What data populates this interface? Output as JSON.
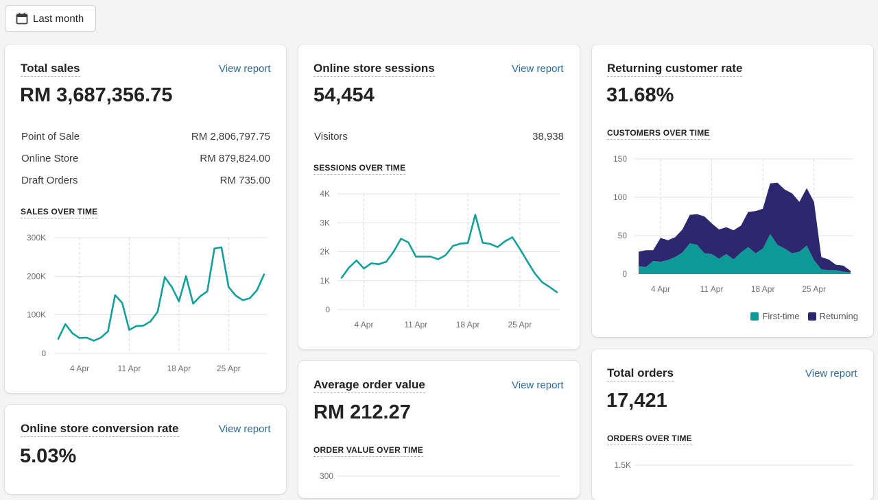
{
  "date_filter": {
    "label": "Last month"
  },
  "total_sales": {
    "title": "Total sales",
    "view_report": "View report",
    "value": "RM 3,687,356.75",
    "breakdown": [
      {
        "label": "Point of Sale",
        "value": "RM 2,806,797.75"
      },
      {
        "label": "Online Store",
        "value": "RM 879,824.00"
      },
      {
        "label": "Draft Orders",
        "value": "RM 735.00"
      }
    ],
    "chart_label": "SALES OVER TIME"
  },
  "online_store_sessions": {
    "title": "Online store sessions",
    "view_report": "View report",
    "value": "54,454",
    "breakdown": [
      {
        "label": "Visitors",
        "value": "38,938"
      }
    ],
    "chart_label": "SESSIONS OVER TIME"
  },
  "returning_customer_rate": {
    "title": "Returning customer rate",
    "value": "31.68%",
    "chart_label": "CUSTOMERS OVER TIME",
    "legend": [
      {
        "name": "First-time",
        "color": "#0d9a96"
      },
      {
        "name": "Returning",
        "color": "#2d2770"
      }
    ]
  },
  "online_store_conversion_rate": {
    "title": "Online store conversion rate",
    "view_report": "View report",
    "value": "5.03%"
  },
  "average_order_value": {
    "title": "Average order value",
    "view_report": "View report",
    "value": "RM 212.27",
    "chart_label": "ORDER VALUE OVER TIME"
  },
  "total_orders": {
    "title": "Total orders",
    "view_report": "View report",
    "value": "17,421",
    "chart_label": "ORDERS OVER TIME"
  },
  "chart_data": [
    {
      "id": "sales",
      "type": "line",
      "x": [
        "1 Apr",
        "2 Apr",
        "3 Apr",
        "4 Apr",
        "5 Apr",
        "6 Apr",
        "7 Apr",
        "8 Apr",
        "9 Apr",
        "10 Apr",
        "11 Apr",
        "12 Apr",
        "13 Apr",
        "14 Apr",
        "15 Apr",
        "16 Apr",
        "17 Apr",
        "18 Apr",
        "19 Apr",
        "20 Apr",
        "21 Apr",
        "22 Apr",
        "23 Apr",
        "24 Apr",
        "25 Apr",
        "26 Apr",
        "27 Apr",
        "28 Apr",
        "29 Apr",
        "30 Apr"
      ],
      "x_ticks": [
        "4 Apr",
        "11 Apr",
        "18 Apr",
        "25 Apr"
      ],
      "y_ticks": [
        "0",
        "100K",
        "200K",
        "300K"
      ],
      "ylim": [
        0,
        300000
      ],
      "color": "#13a09b",
      "series": [
        {
          "values": [
            38000,
            76000,
            52000,
            40000,
            41000,
            33000,
            41000,
            57000,
            151000,
            131000,
            61000,
            71000,
            72000,
            83000,
            108000,
            198000,
            172000,
            135000,
            200000,
            129000,
            148000,
            161000,
            272000,
            275000,
            172000,
            150000,
            138000,
            143000,
            164000,
            205000
          ]
        }
      ]
    },
    {
      "id": "sessions",
      "type": "line",
      "x": [
        "1 Apr",
        "2 Apr",
        "3 Apr",
        "4 Apr",
        "5 Apr",
        "6 Apr",
        "7 Apr",
        "8 Apr",
        "9 Apr",
        "10 Apr",
        "11 Apr",
        "12 Apr",
        "13 Apr",
        "14 Apr",
        "15 Apr",
        "16 Apr",
        "17 Apr",
        "18 Apr",
        "19 Apr",
        "20 Apr",
        "21 Apr",
        "22 Apr",
        "23 Apr",
        "24 Apr",
        "25 Apr",
        "26 Apr",
        "27 Apr",
        "28 Apr",
        "29 Apr",
        "30 Apr"
      ],
      "x_ticks": [
        "4 Apr",
        "11 Apr",
        "18 Apr",
        "25 Apr"
      ],
      "y_ticks": [
        "0",
        "1K",
        "2K",
        "3K",
        "4K"
      ],
      "ylim": [
        0,
        4000
      ],
      "color": "#13a09b",
      "series": [
        {
          "values": [
            1100,
            1450,
            1700,
            1420,
            1600,
            1570,
            1650,
            2000,
            2450,
            2320,
            1830,
            1830,
            1830,
            1740,
            1880,
            2200,
            2280,
            2300,
            3280,
            2310,
            2270,
            2160,
            2360,
            2500,
            2100,
            1670,
            1260,
            950,
            780,
            600
          ]
        }
      ]
    },
    {
      "id": "customers",
      "type": "area",
      "stacked": true,
      "x": [
        "1 Apr",
        "2 Apr",
        "3 Apr",
        "4 Apr",
        "5 Apr",
        "6 Apr",
        "7 Apr",
        "8 Apr",
        "9 Apr",
        "10 Apr",
        "11 Apr",
        "12 Apr",
        "13 Apr",
        "14 Apr",
        "15 Apr",
        "16 Apr",
        "17 Apr",
        "18 Apr",
        "19 Apr",
        "20 Apr",
        "21 Apr",
        "22 Apr",
        "23 Apr",
        "24 Apr",
        "25 Apr",
        "26 Apr",
        "27 Apr",
        "28 Apr",
        "29 Apr",
        "30 Apr"
      ],
      "x_ticks": [
        "4 Apr",
        "11 Apr",
        "18 Apr",
        "25 Apr"
      ],
      "y_ticks": [
        "0",
        "50",
        "100",
        "150"
      ],
      "ylim": [
        0,
        150
      ],
      "series": [
        {
          "name": "First-time",
          "color": "#0d9a96",
          "values": [
            10,
            9,
            17,
            16,
            18,
            22,
            28,
            40,
            38,
            27,
            26,
            20,
            26,
            19,
            28,
            35,
            27,
            33,
            52,
            38,
            33,
            27,
            29,
            37,
            18,
            6,
            5,
            5,
            3,
            2
          ]
        },
        {
          "name": "Returning",
          "color": "#2d2770",
          "values": [
            19,
            22,
            14,
            31,
            26,
            26,
            30,
            37,
            40,
            48,
            40,
            38,
            35,
            38,
            35,
            46,
            55,
            52,
            66,
            81,
            77,
            78,
            65,
            75,
            76,
            16,
            14,
            7,
            8,
            2
          ]
        }
      ]
    },
    {
      "id": "orders",
      "type": "line",
      "x_ticks": [],
      "y_ticks": [
        "1.5K"
      ],
      "ylim": [
        0,
        1500
      ],
      "color": "#13a09b",
      "series": [
        {
          "values": []
        }
      ]
    },
    {
      "id": "order_value",
      "type": "line",
      "x_ticks": [],
      "y_ticks": [
        "300"
      ],
      "ylim": [
        0,
        300
      ],
      "color": "#13a09b",
      "series": [
        {
          "values": []
        }
      ]
    }
  ]
}
